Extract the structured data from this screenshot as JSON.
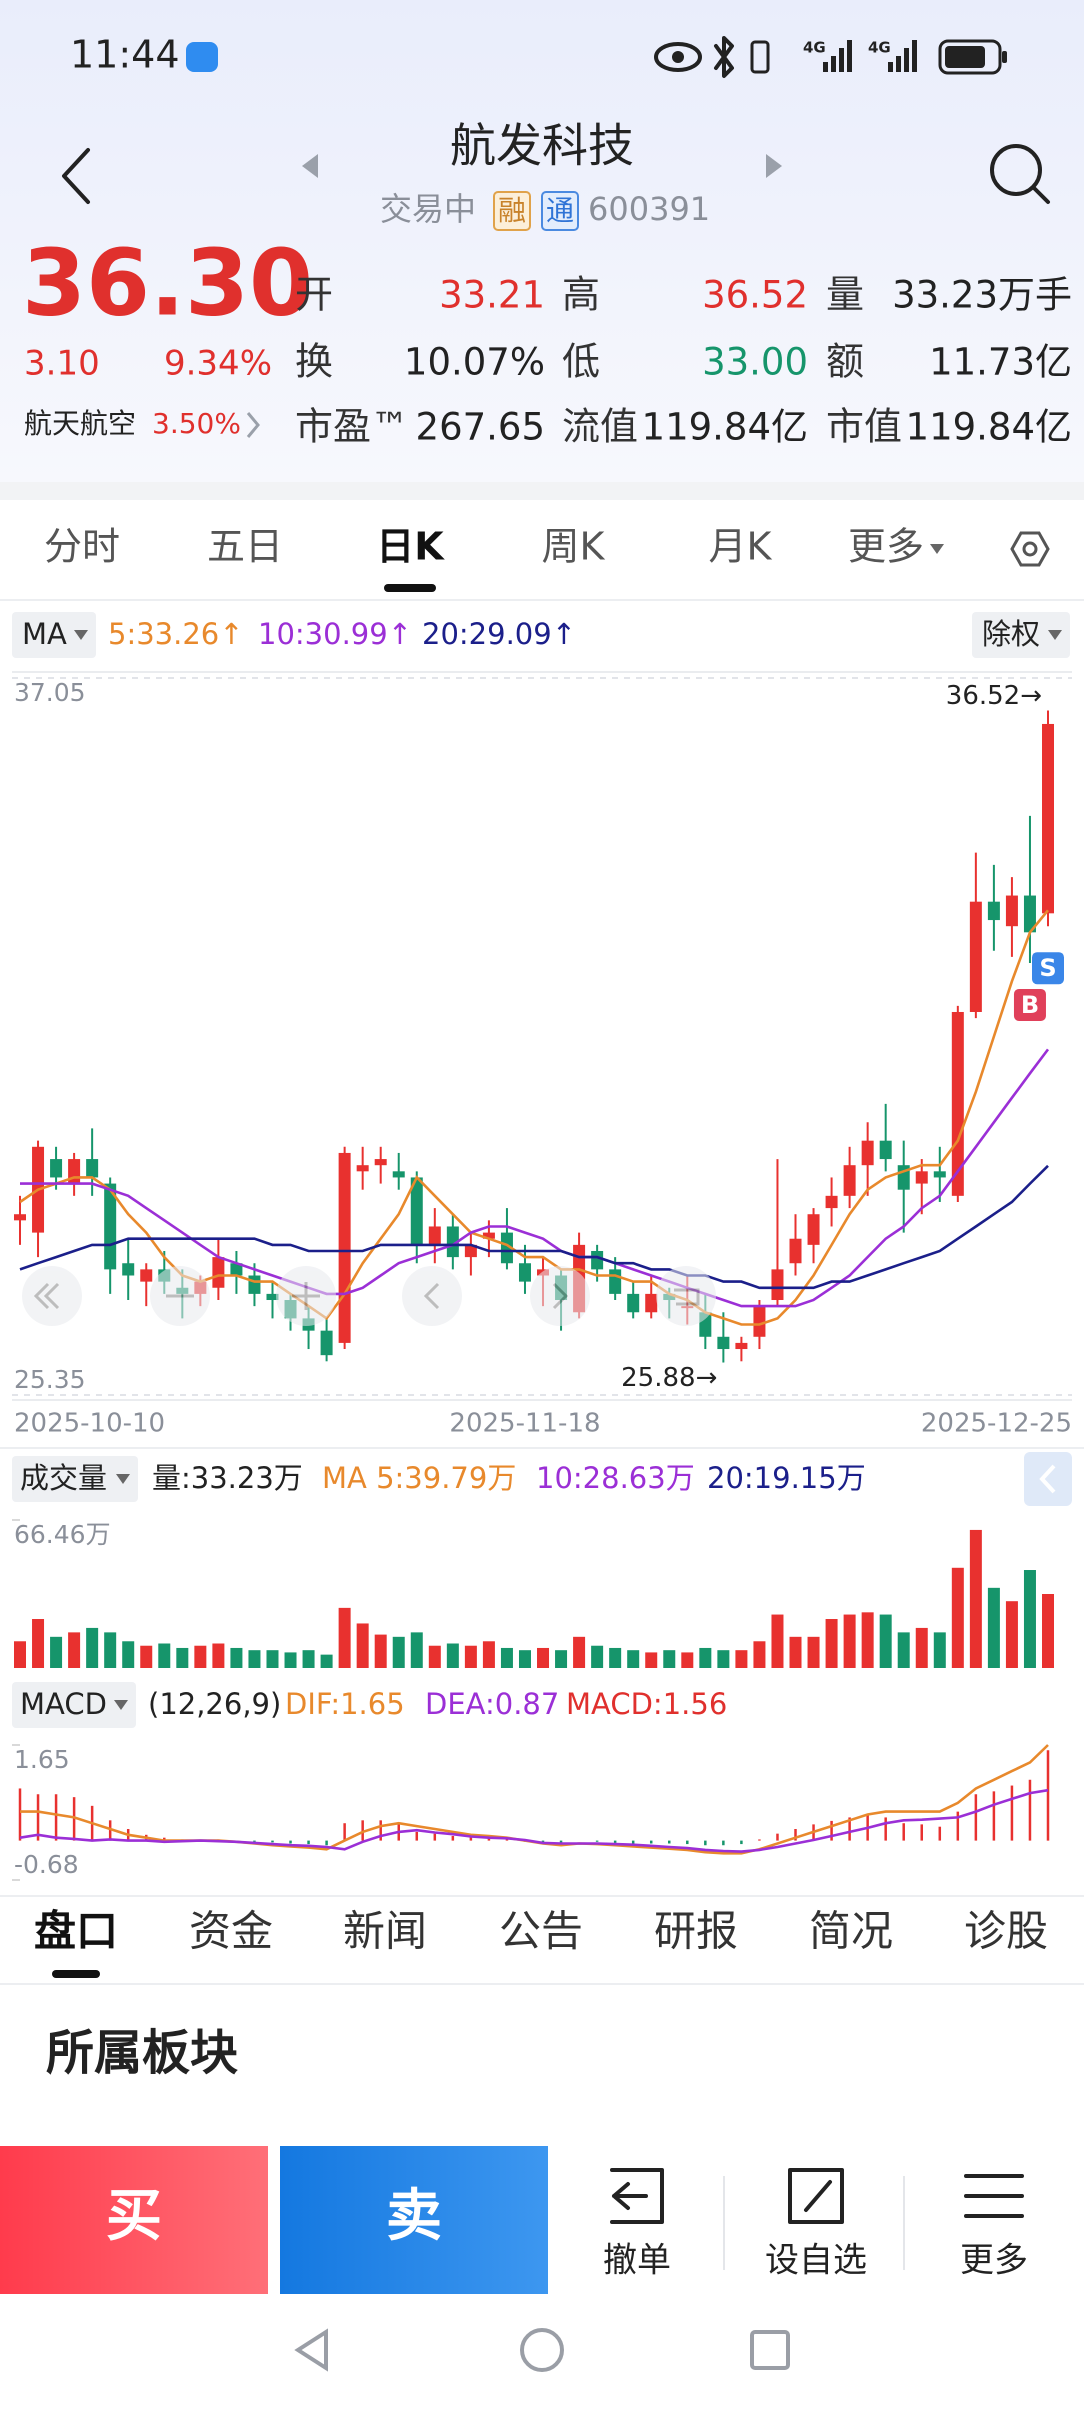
{
  "status_bar": {
    "time": "11:44",
    "network": [
      "4G",
      "4G"
    ]
  },
  "header": {
    "title": "航发科技",
    "status": "交易中",
    "tags": [
      "融",
      "通"
    ],
    "code": "600391"
  },
  "quote": {
    "price": "36.30",
    "change": "3.10",
    "change_pct": "9.34%",
    "sector_name": "航天航空",
    "sector_pct": "3.50%",
    "fields": [
      {
        "label": "开",
        "value": "33.21",
        "color": "#e0302d"
      },
      {
        "label": "高",
        "value": "36.52",
        "color": "#e0302d"
      },
      {
        "label": "量",
        "value": "33.23万手",
        "color": "#222222"
      },
      {
        "label": "换",
        "value": "10.07%",
        "color": "#222222"
      },
      {
        "label": "低",
        "value": "33.00",
        "color": "#16956b"
      },
      {
        "label": "额",
        "value": "11.73亿",
        "color": "#222222"
      },
      {
        "label": "市盈™",
        "value": "267.65",
        "color": "#222222"
      },
      {
        "label": "流值",
        "value": "119.84亿",
        "color": "#222222"
      },
      {
        "label": "市值",
        "value": "119.84亿",
        "color": "#222222"
      }
    ]
  },
  "tabs": {
    "items": [
      "分时",
      "五日",
      "日K",
      "周K",
      "月K",
      "更多"
    ],
    "active": 2
  },
  "chart_data": [
    {
      "type": "candlestick",
      "ma_label": "MA",
      "adjust_label": "除权",
      "categories": [
        "2025-10-10",
        null,
        null,
        null,
        null,
        null,
        null,
        null,
        null,
        null,
        null,
        null,
        null,
        null,
        null,
        null,
        null,
        null,
        null,
        null,
        null,
        null,
        null,
        null,
        null,
        null,
        null,
        null,
        "2025-11-18",
        null,
        null,
        null,
        null,
        null,
        null,
        null,
        null,
        null,
        null,
        null,
        null,
        null,
        null,
        null,
        null,
        null,
        null,
        null,
        null,
        null,
        null,
        null,
        null,
        null,
        null,
        null,
        null,
        "2025-12-25"
      ],
      "ohlc": [
        [
          28.2,
          28.6,
          27.8,
          28.3
        ],
        [
          28.0,
          29.5,
          27.6,
          29.4
        ],
        [
          29.2,
          29.4,
          28.7,
          28.9
        ],
        [
          28.8,
          29.3,
          28.6,
          29.2
        ],
        [
          29.2,
          29.7,
          28.6,
          28.9
        ],
        [
          28.8,
          28.9,
          27.0,
          27.4
        ],
        [
          27.5,
          27.9,
          26.9,
          27.3
        ],
        [
          27.2,
          27.5,
          26.8,
          27.4
        ],
        [
          27.4,
          27.7,
          27.0,
          27.2
        ],
        [
          27.1,
          27.4,
          26.6,
          27.0
        ],
        [
          27.0,
          27.3,
          26.8,
          27.2
        ],
        [
          27.1,
          27.9,
          26.9,
          27.6
        ],
        [
          27.5,
          27.7,
          27.0,
          27.3
        ],
        [
          27.3,
          27.5,
          26.8,
          27.0
        ],
        [
          27.0,
          27.2,
          26.6,
          26.9
        ],
        [
          26.9,
          27.0,
          26.4,
          26.6
        ],
        [
          26.6,
          26.8,
          26.1,
          26.4
        ],
        [
          26.4,
          26.6,
          25.9,
          26.0
        ],
        [
          26.2,
          29.4,
          26.1,
          29.3
        ],
        [
          29.0,
          29.4,
          28.7,
          29.1
        ],
        [
          29.1,
          29.4,
          28.8,
          29.2
        ],
        [
          29.0,
          29.3,
          28.7,
          28.9
        ],
        [
          28.9,
          29.0,
          27.5,
          27.8
        ],
        [
          27.8,
          28.4,
          27.5,
          28.1
        ],
        [
          28.1,
          28.3,
          27.4,
          27.6
        ],
        [
          27.6,
          28.0,
          27.3,
          27.8
        ],
        [
          27.9,
          28.2,
          27.6,
          28.0
        ],
        [
          28.0,
          28.4,
          27.4,
          27.5
        ],
        [
          27.5,
          27.8,
          27.0,
          27.2
        ],
        [
          27.3,
          27.6,
          26.8,
          27.4
        ],
        [
          27.3,
          27.4,
          26.4,
          26.9
        ],
        [
          26.7,
          28.0,
          26.6,
          27.8
        ],
        [
          27.7,
          27.8,
          27.2,
          27.4
        ],
        [
          27.4,
          27.6,
          26.9,
          27.0
        ],
        [
          27.0,
          27.2,
          26.6,
          26.7
        ],
        [
          26.7,
          27.3,
          26.6,
          27.0
        ],
        [
          27.0,
          27.1,
          26.6,
          26.9
        ],
        [
          26.8,
          27.3,
          26.5,
          26.8
        ],
        [
          26.7,
          27.0,
          26.1,
          26.3
        ],
        [
          26.3,
          26.7,
          25.88,
          26.1
        ],
        [
          26.1,
          26.3,
          25.9,
          26.2
        ],
        [
          26.3,
          26.9,
          26.1,
          26.8
        ],
        [
          26.9,
          29.2,
          26.8,
          27.4
        ],
        [
          27.5,
          28.3,
          27.3,
          27.9
        ],
        [
          27.8,
          28.4,
          27.5,
          28.3
        ],
        [
          28.4,
          28.9,
          28.1,
          28.6
        ],
        [
          28.6,
          29.4,
          28.4,
          29.1
        ],
        [
          29.1,
          29.8,
          28.6,
          29.5
        ],
        [
          29.5,
          30.1,
          29.0,
          29.2
        ],
        [
          29.1,
          29.5,
          28.0,
          28.7
        ],
        [
          28.8,
          29.2,
          28.3,
          29.0
        ],
        [
          29.0,
          29.4,
          28.5,
          28.9
        ],
        [
          28.6,
          31.7,
          28.5,
          31.6
        ],
        [
          31.6,
          34.2,
          31.5,
          33.4
        ],
        [
          33.4,
          34.0,
          32.6,
          33.1
        ],
        [
          33.0,
          33.8,
          32.5,
          33.5
        ],
        [
          33.5,
          34.8,
          32.4,
          32.9
        ],
        [
          33.21,
          36.52,
          33.0,
          36.3
        ]
      ],
      "up_color": "#e8312f",
      "down_color": "#16956b",
      "series": [
        {
          "label": "5:33.26↑",
          "color": "#e8892c",
          "values": [
            28.5,
            28.7,
            28.8,
            28.9,
            28.9,
            28.7,
            28.3,
            28.0,
            27.6,
            27.3,
            27.2,
            27.3,
            27.3,
            27.2,
            27.2,
            27.0,
            26.8,
            26.6,
            27.0,
            27.5,
            27.9,
            28.3,
            28.9,
            28.6,
            28.3,
            28.0,
            27.9,
            27.8,
            27.6,
            27.6,
            27.4,
            27.4,
            27.3,
            27.3,
            27.2,
            27.2,
            27.0,
            26.9,
            26.7,
            26.6,
            26.5,
            26.5,
            26.6,
            26.9,
            27.3,
            27.8,
            28.3,
            28.7,
            28.9,
            29.0,
            29.1,
            29.1,
            29.5,
            30.3,
            31.2,
            32.1,
            32.9,
            33.26
          ]
        },
        {
          "label": "10:30.99↑",
          "color": "#9b2fd6",
          "values": [
            28.8,
            28.8,
            28.8,
            28.8,
            28.8,
            28.7,
            28.6,
            28.4,
            28.2,
            28.0,
            27.8,
            27.6,
            27.5,
            27.4,
            27.3,
            27.2,
            27.1,
            27.0,
            27.0,
            27.1,
            27.3,
            27.5,
            27.6,
            27.7,
            27.8,
            28.0,
            28.1,
            28.1,
            28.0,
            27.9,
            27.7,
            27.6,
            27.6,
            27.5,
            27.4,
            27.3,
            27.2,
            27.1,
            27.0,
            26.9,
            26.8,
            26.8,
            26.8,
            26.8,
            26.9,
            27.1,
            27.3,
            27.6,
            27.9,
            28.1,
            28.4,
            28.6,
            29.0,
            29.4,
            29.8,
            30.2,
            30.6,
            30.99
          ]
        },
        {
          "label": "20:29.09↑",
          "color": "#1b1f8a",
          "values": [
            27.4,
            27.5,
            27.6,
            27.7,
            27.8,
            27.8,
            27.9,
            27.9,
            27.9,
            27.9,
            27.9,
            27.9,
            27.9,
            27.9,
            27.8,
            27.8,
            27.7,
            27.7,
            27.7,
            27.7,
            27.8,
            27.8,
            27.8,
            27.8,
            27.8,
            27.8,
            27.7,
            27.7,
            27.7,
            27.7,
            27.7,
            27.6,
            27.6,
            27.5,
            27.5,
            27.4,
            27.4,
            27.3,
            27.3,
            27.2,
            27.2,
            27.1,
            27.1,
            27.1,
            27.1,
            27.2,
            27.2,
            27.3,
            27.4,
            27.5,
            27.6,
            27.7,
            27.9,
            28.1,
            28.3,
            28.5,
            28.8,
            29.09
          ]
        }
      ],
      "ylim": [
        25.35,
        37.05
      ],
      "yticks": [
        37.05,
        25.35
      ],
      "grid": true,
      "annotations": [
        {
          "value": 36.52,
          "label": "36.52→"
        },
        {
          "value": 25.88,
          "label": "25.88→"
        }
      ],
      "markers": [
        {
          "label": "S",
          "index": 57,
          "color": "#3a86e8"
        },
        {
          "label": "B",
          "index": 56,
          "color": "#e0405a"
        }
      ]
    },
    {
      "type": "bar",
      "title": "成交量",
      "legend": [
        {
          "label": "量:33.23万",
          "color": "#222222"
        },
        {
          "label": "MA 5:39.79万",
          "color": "#e8892c"
        },
        {
          "label": "10:28.63万",
          "color": "#9b2fd6"
        },
        {
          "label": "20:19.15万",
          "color": "#1b1f8a"
        }
      ],
      "values": [
        12,
        22,
        14,
        16,
        18,
        16,
        12,
        10,
        11,
        9,
        10,
        11,
        9,
        8,
        8,
        7,
        8,
        6,
        27,
        20,
        15,
        14,
        16,
        10,
        11,
        10,
        12,
        9,
        8,
        9,
        8,
        14,
        10,
        9,
        8,
        7,
        8,
        7,
        9,
        8,
        8,
        12,
        24,
        14,
        14,
        22,
        24,
        25,
        24,
        16,
        18,
        16,
        45,
        62,
        36,
        30,
        44,
        33.23
      ],
      "ylim": [
        0,
        66.46
      ],
      "yticks": [
        {
          "value": 66.46,
          "label": "66.46万"
        }
      ]
    },
    {
      "type": "macd",
      "title": "MACD",
      "params": "(12,26,9)",
      "label": "MACD:1.56",
      "label_color": "#e0302d",
      "values": [
        0.9,
        0.8,
        0.8,
        0.75,
        0.6,
        0.35,
        0.2,
        0.1,
        0.05,
        0.02,
        0.0,
        0.02,
        0.0,
        -0.02,
        -0.03,
        -0.05,
        -0.06,
        -0.08,
        0.3,
        0.35,
        0.35,
        0.3,
        0.15,
        0.12,
        0.08,
        0.06,
        0.05,
        0.02,
        -0.02,
        -0.03,
        -0.06,
        0.0,
        -0.02,
        -0.04,
        -0.06,
        -0.05,
        -0.05,
        -0.06,
        -0.08,
        -0.08,
        -0.06,
        0.02,
        0.12,
        0.2,
        0.28,
        0.34,
        0.4,
        0.45,
        0.4,
        0.3,
        0.28,
        0.24,
        0.5,
        0.8,
        0.85,
        0.95,
        1.05,
        1.56
      ],
      "series": [
        {
          "label": "DIF:1.65",
          "color": "#e8892c",
          "values": [
            0.5,
            0.5,
            0.45,
            0.4,
            0.3,
            0.2,
            0.1,
            0.05,
            0.0,
            0.0,
            0.0,
            0.0,
            -0.02,
            -0.05,
            -0.08,
            -0.1,
            -0.12,
            -0.15,
            0.0,
            0.15,
            0.25,
            0.3,
            0.25,
            0.2,
            0.15,
            0.1,
            0.08,
            0.05,
            0.0,
            -0.05,
            -0.08,
            -0.05,
            -0.06,
            -0.08,
            -0.1,
            -0.12,
            -0.14,
            -0.16,
            -0.2,
            -0.22,
            -0.22,
            -0.15,
            -0.05,
            0.05,
            0.15,
            0.25,
            0.35,
            0.45,
            0.5,
            0.5,
            0.5,
            0.5,
            0.65,
            0.9,
            1.05,
            1.2,
            1.35,
            1.65
          ]
        },
        {
          "label": "DEA:0.87",
          "color": "#9b2fd6",
          "values": [
            0.05,
            0.1,
            0.05,
            0.03,
            0.0,
            0.02,
            0.0,
            0.0,
            -0.02,
            -0.01,
            0.0,
            -0.01,
            -0.02,
            -0.04,
            -0.06,
            -0.08,
            -0.09,
            -0.11,
            -0.15,
            -0.02,
            0.08,
            0.15,
            0.18,
            0.14,
            0.11,
            0.07,
            0.05,
            0.04,
            0.01,
            -0.04,
            -0.05,
            -0.05,
            -0.05,
            -0.06,
            -0.07,
            -0.09,
            -0.11,
            -0.13,
            -0.16,
            -0.18,
            -0.19,
            -0.16,
            -0.11,
            -0.05,
            0.01,
            0.08,
            0.15,
            0.22,
            0.3,
            0.35,
            0.36,
            0.38,
            0.4,
            0.5,
            0.62,
            0.72,
            0.82,
            0.87
          ]
        }
      ],
      "up_color": "#e8312f",
      "down_color": "#16956b",
      "ylim": [
        -0.68,
        1.65
      ],
      "yticks": [
        1.65,
        -0.68
      ]
    }
  ],
  "bottom_tabs": {
    "items": [
      "盘口",
      "资金",
      "新闻",
      "公告",
      "研报",
      "简况",
      "诊股"
    ],
    "active": 0
  },
  "section": {
    "title": "所属板块"
  },
  "actions": {
    "buy": "买",
    "sell": "卖",
    "buttons": [
      "撤单",
      "设自选",
      "更多"
    ]
  }
}
